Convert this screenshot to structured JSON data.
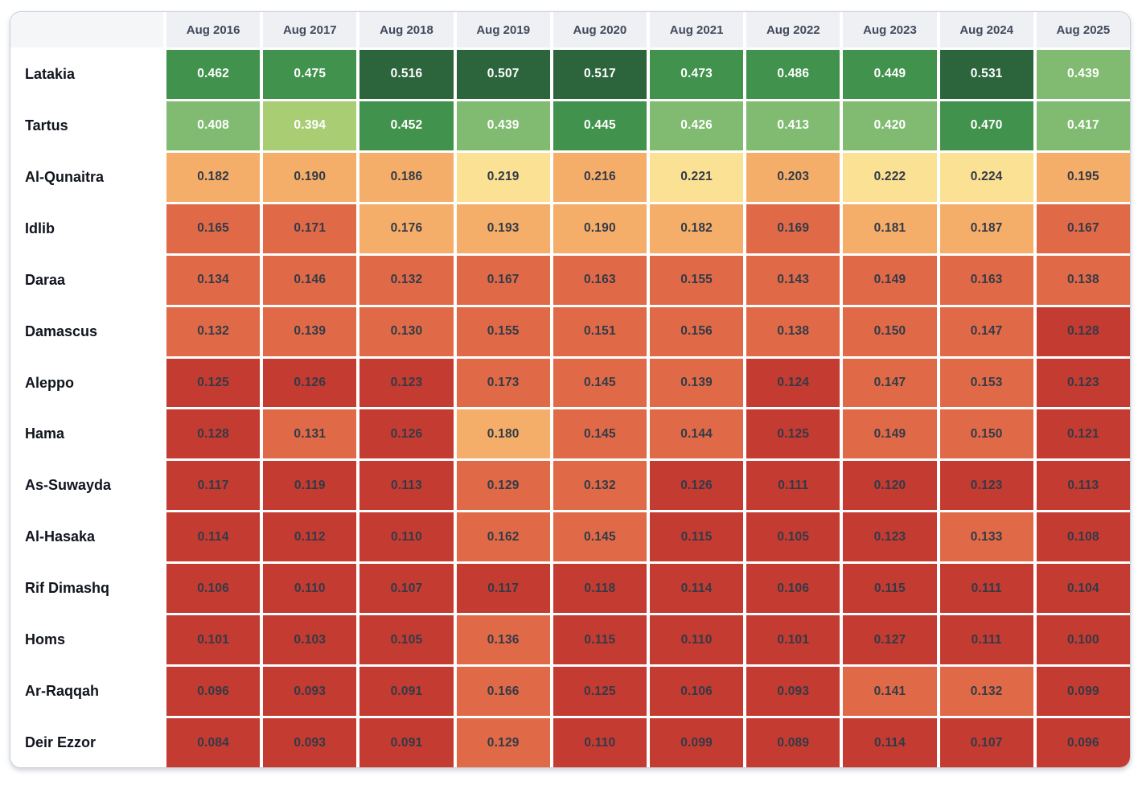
{
  "chart_data": {
    "type": "heatmap",
    "columns": [
      "Aug 2016",
      "Aug 2017",
      "Aug 2018",
      "Aug 2019",
      "Aug 2020",
      "Aug 2021",
      "Aug 2022",
      "Aug 2023",
      "Aug 2024",
      "Aug 2025"
    ],
    "rows": [
      "Latakia",
      "Tartus",
      "Al-Qunaitra",
      "Idlib",
      "Daraa",
      "Damascus",
      "Aleppo",
      "Hama",
      "As-Suwayda",
      "Al-Hasaka",
      "Rif Dimashq",
      "Homs",
      "Ar-Raqqah",
      "Deir Ezzor"
    ],
    "values": [
      [
        0.462,
        0.475,
        0.516,
        0.507,
        0.517,
        0.473,
        0.486,
        0.449,
        0.531,
        0.439
      ],
      [
        0.408,
        0.394,
        0.452,
        0.439,
        0.445,
        0.426,
        0.413,
        0.42,
        0.47,
        0.417
      ],
      [
        0.182,
        0.19,
        0.186,
        0.219,
        0.216,
        0.221,
        0.203,
        0.222,
        0.224,
        0.195
      ],
      [
        0.165,
        0.171,
        0.176,
        0.193,
        0.19,
        0.182,
        0.169,
        0.181,
        0.187,
        0.167
      ],
      [
        0.134,
        0.146,
        0.132,
        0.167,
        0.163,
        0.155,
        0.143,
        0.149,
        0.163,
        0.138
      ],
      [
        0.132,
        0.139,
        0.13,
        0.155,
        0.151,
        0.156,
        0.138,
        0.15,
        0.147,
        0.128
      ],
      [
        0.125,
        0.126,
        0.123,
        0.173,
        0.145,
        0.139,
        0.124,
        0.147,
        0.153,
        0.123
      ],
      [
        0.128,
        0.131,
        0.126,
        0.18,
        0.145,
        0.144,
        0.125,
        0.149,
        0.15,
        0.121
      ],
      [
        0.117,
        0.119,
        0.113,
        0.129,
        0.132,
        0.126,
        0.111,
        0.12,
        0.123,
        0.113
      ],
      [
        0.114,
        0.112,
        0.11,
        0.162,
        0.145,
        0.115,
        0.105,
        0.123,
        0.133,
        0.108
      ],
      [
        0.106,
        0.11,
        0.107,
        0.117,
        0.118,
        0.114,
        0.106,
        0.115,
        0.111,
        0.104
      ],
      [
        0.101,
        0.103,
        0.105,
        0.136,
        0.115,
        0.11,
        0.101,
        0.127,
        0.111,
        0.1
      ],
      [
        0.096,
        0.093,
        0.091,
        0.166,
        0.125,
        0.106,
        0.093,
        0.141,
        0.132,
        0.099
      ],
      [
        0.084,
        0.093,
        0.091,
        0.129,
        0.11,
        0.099,
        0.089,
        0.114,
        0.107,
        0.096
      ]
    ],
    "value_decimals": 3,
    "color_scale": {
      "kind": "equal-interval-bins",
      "palette": "red-yellow-green",
      "domain_min": 0.084,
      "domain_max": 0.531,
      "num_bins": 10,
      "bin_colors": [
        "#c43b32",
        "#e06a48",
        "#f5ae6a",
        "#fae194",
        "#fdf0a4",
        "#d9e89b",
        "#a9cd73",
        "#80bb71",
        "#41924c",
        "#2c643c"
      ],
      "white_text_min_bin_index": 6
    },
    "legend": "none",
    "grid_gap_color": "#ffffff"
  },
  "theme": {
    "page_bg": "#ffffff",
    "card_bg": "#ffffff",
    "card_border": "#c9cfd7",
    "corner_bg": "#f5f6f8",
    "header_bg": "#eef0f3",
    "header_text": "#404a5c",
    "row_label_text": "#10141d",
    "cell_dark_text": "#333a46",
    "cell_light_text": "#ffffff"
  }
}
